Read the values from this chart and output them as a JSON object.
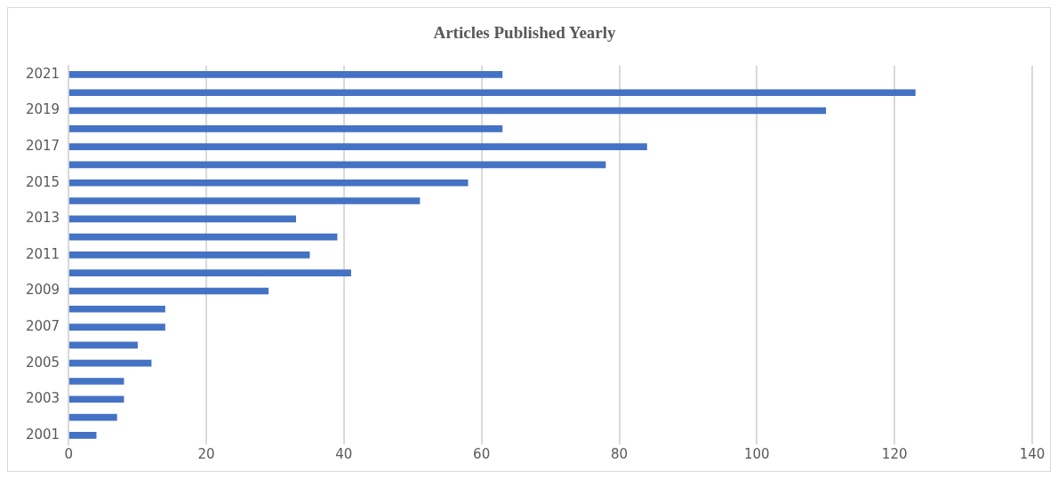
{
  "chart_data": {
    "type": "bar",
    "orientation": "horizontal",
    "title": "Articles Published Yearly",
    "categories": [
      "2021",
      null,
      "2019",
      null,
      "2017",
      null,
      "2015",
      null,
      "2013",
      null,
      "2011",
      null,
      "2009",
      null,
      "2007",
      null,
      "2005",
      null,
      "2003",
      null,
      "2001"
    ],
    "values": [
      63,
      123,
      110,
      63,
      84,
      78,
      58,
      51,
      33,
      39,
      35,
      41,
      29,
      14,
      14,
      10,
      12,
      8,
      8,
      7,
      4
    ],
    "color": "#4472c4",
    "xlim": [
      0,
      140
    ],
    "xticks": [
      0,
      20,
      40,
      60,
      80,
      100,
      120,
      140
    ],
    "grid": "x"
  }
}
